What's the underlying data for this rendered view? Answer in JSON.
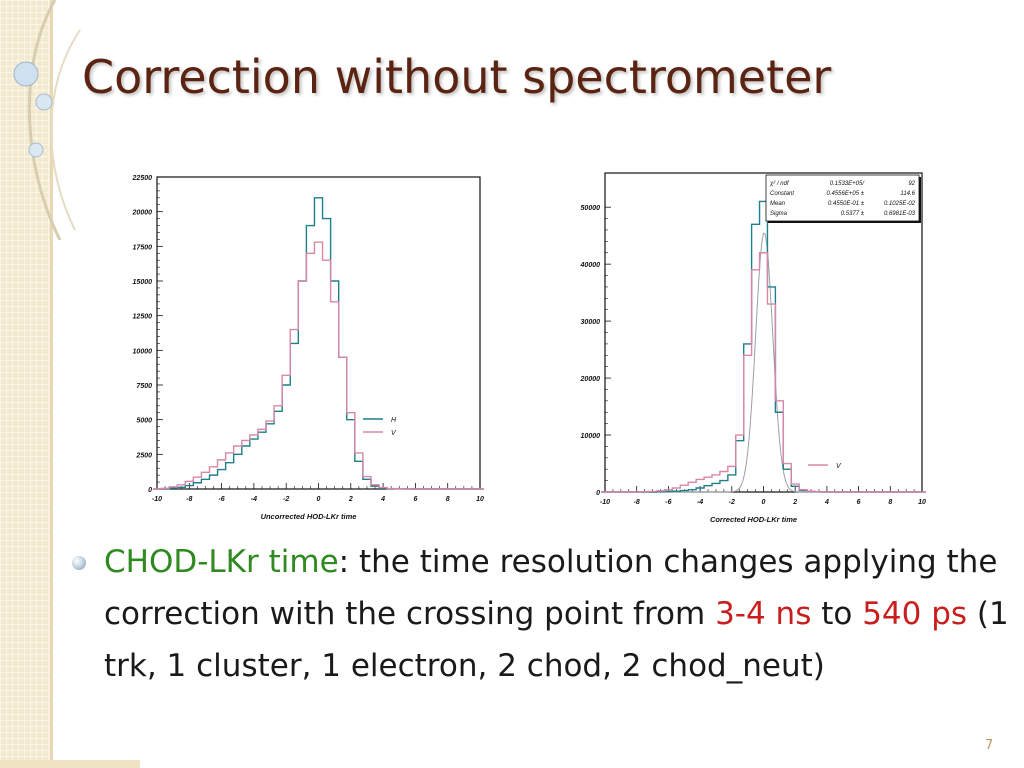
{
  "slide": {
    "title": "Correction without spectrometer",
    "page_number": "7",
    "bullet": {
      "term": "CHOD-LKr time",
      "sep": ":",
      "p1": " the time resolution changes applying the correction with the crossing point from ",
      "val1": "3-4 ns",
      "p2": " to ",
      "val2": "540 ps",
      "p3": " (1 trk, 1 cluster, 1 electron, 2 chod, 2 chod_neut)"
    }
  },
  "colors": {
    "title": "#5a2312",
    "series_h": "#1f7f8a",
    "series_v": "#d987a8",
    "fit_curve": "#9aa0a6",
    "highlight_green": "#2f8a1f",
    "highlight_red": "#c81e1e"
  },
  "chart_data": [
    {
      "type": "line",
      "step": true,
      "xlabel": "Uncorrected HOD-LKr time",
      "ylabel": "",
      "xlim": [
        -10,
        10
      ],
      "ylim": [
        0,
        22500
      ],
      "xticks": [
        "-10",
        "-8",
        "-6",
        "-4",
        "-2",
        "0",
        "2",
        "4",
        "6",
        "8",
        "10"
      ],
      "yticks": [
        "0",
        "2500",
        "5000",
        "7500",
        "10000",
        "12500",
        "15000",
        "17500",
        "20000",
        "22500"
      ],
      "legend_position": "right",
      "x": [
        -10,
        -9.5,
        -9,
        -8.5,
        -8,
        -7.5,
        -7,
        -6.5,
        -6,
        -5.5,
        -5,
        -4.5,
        -4,
        -3.5,
        -3,
        -2.5,
        -2,
        -1.5,
        -1,
        -0.5,
        0,
        0.5,
        1,
        1.5,
        2,
        2.5,
        3,
        3.5,
        4,
        4.5,
        5,
        5.5,
        6,
        6.5,
        7,
        7.5,
        8,
        8.5,
        9,
        9.5,
        10
      ],
      "series": [
        {
          "name": "H",
          "color": "#1f7f8a",
          "values": [
            0,
            20,
            60,
            120,
            250,
            450,
            700,
            1000,
            1400,
            1900,
            2500,
            3100,
            3600,
            4100,
            4700,
            5600,
            7500,
            10500,
            15000,
            19000,
            21000,
            19500,
            15000,
            9500,
            5000,
            2000,
            700,
            200,
            60,
            20,
            10,
            5,
            0,
            0,
            0,
            0,
            0,
            0,
            0,
            0,
            0
          ]
        },
        {
          "name": "V",
          "color": "#d987a8",
          "values": [
            0,
            50,
            150,
            300,
            550,
            850,
            1200,
            1600,
            2100,
            2600,
            3100,
            3500,
            3900,
            4300,
            4900,
            6000,
            8200,
            11500,
            15000,
            17000,
            17800,
            16500,
            13500,
            9500,
            5500,
            2600,
            900,
            300,
            100,
            30,
            10,
            5,
            0,
            0,
            0,
            0,
            0,
            0,
            0,
            0,
            0
          ]
        }
      ]
    },
    {
      "type": "line",
      "step": true,
      "xlabel": "Corrected HOD-LKr time",
      "ylabel": "",
      "xlim": [
        -10,
        10
      ],
      "ylim": [
        0,
        56000
      ],
      "xticks": [
        "-10",
        "-8",
        "-6",
        "-4",
        "-2",
        "0",
        "2",
        "4",
        "6",
        "8",
        "10"
      ],
      "yticks": [
        "0",
        "10000",
        "20000",
        "30000",
        "40000",
        "50000"
      ],
      "legend_position": "right",
      "stats_box": [
        {
          "label": "χ² / ndf",
          "v1": "0.1533E+05/",
          "v2": "92"
        },
        {
          "label": "Constant",
          "v1": "0.4556E+05 ±",
          "v2": "114.6"
        },
        {
          "label": "Mean",
          "v1": "0.4550E-01 ±",
          "v2": "0.1025E-02"
        },
        {
          "label": "Sigma",
          "v1": "0.5377 ±",
          "v2": "0.6981E-03"
        }
      ],
      "fit": {
        "constant": 45560,
        "mean": 0.0455,
        "sigma": 0.5377
      },
      "x": [
        -10,
        -9.5,
        -9,
        -8.5,
        -8,
        -7.5,
        -7,
        -6.5,
        -6,
        -5.5,
        -5,
        -4.5,
        -4,
        -3.5,
        -3,
        -2.5,
        -2,
        -1.5,
        -1,
        -0.5,
        0,
        0.5,
        1,
        1.5,
        2,
        2.5,
        3,
        3.5,
        4,
        4.5,
        5,
        5.5,
        6,
        6.5,
        7,
        7.5,
        8,
        8.5,
        9,
        9.5,
        10
      ],
      "series": [
        {
          "name": "",
          "color": "#1f7f8a",
          "values": [
            0,
            0,
            0,
            0,
            0,
            0,
            0,
            50,
            100,
            150,
            250,
            400,
            700,
            1100,
            1500,
            2000,
            3000,
            9000,
            26000,
            47000,
            51000,
            36000,
            14000,
            4000,
            1000,
            300,
            100,
            50,
            0,
            0,
            0,
            0,
            0,
            0,
            0,
            0,
            0,
            0,
            0,
            0,
            0
          ]
        },
        {
          "name": "V",
          "color": "#d987a8",
          "values": [
            0,
            0,
            0,
            0,
            0,
            50,
            100,
            200,
            400,
            700,
            1200,
            1700,
            2200,
            2600,
            3000,
            3600,
            4500,
            10000,
            24000,
            39000,
            42000,
            33000,
            16000,
            5000,
            1400,
            400,
            150,
            50,
            0,
            0,
            0,
            0,
            0,
            0,
            0,
            0,
            0,
            0,
            0,
            0,
            0
          ]
        }
      ]
    }
  ]
}
